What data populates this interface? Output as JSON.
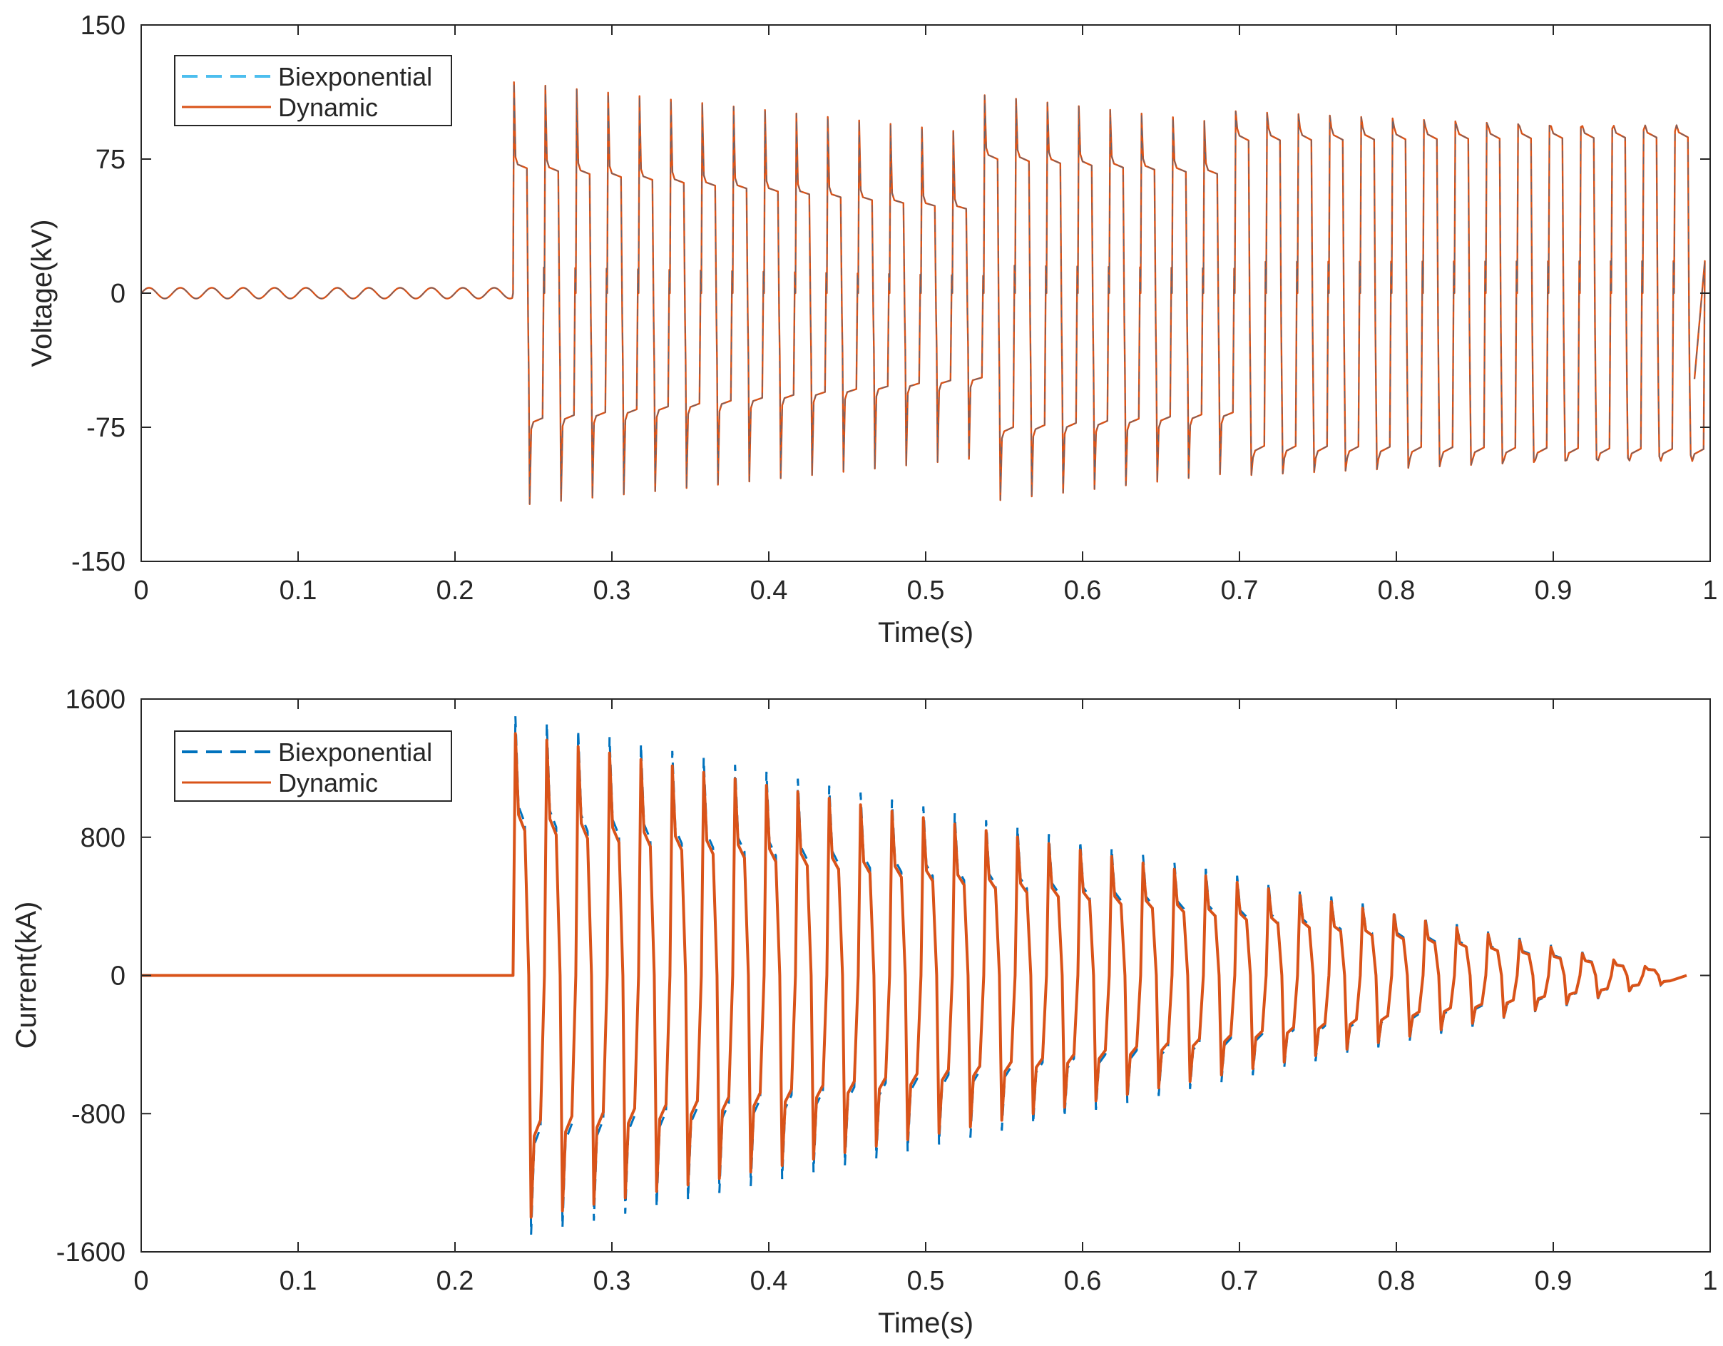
{
  "colors": {
    "dynamic": "#d95319",
    "biexponential": "#0072bd",
    "biexponential_legend_voltage": "#4dbeee",
    "axis": "#262626",
    "background": "#ffffff"
  },
  "chart_data": [
    {
      "type": "line",
      "id": "voltage",
      "title": "",
      "xlabel": "Time(s)",
      "ylabel": "Voltage(kV)",
      "xlim": [
        0,
        1
      ],
      "ylim": [
        -150,
        150
      ],
      "xticks": [
        0,
        0.1,
        0.2,
        0.3,
        0.4,
        0.5,
        0.6,
        0.7,
        0.8,
        0.9,
        1
      ],
      "xtick_labels": [
        "0",
        "0.1",
        "0.2",
        "0.3",
        "0.4",
        "0.5",
        "0.6",
        "0.7",
        "0.8",
        "0.9",
        "1"
      ],
      "yticks": [
        150,
        75,
        0,
        -75,
        -150
      ],
      "ytick_labels": [
        "150",
        "75",
        "0",
        "-75",
        "-150"
      ],
      "legend": {
        "position": "top-left",
        "entries": [
          "Biexponential",
          "Dynamic"
        ]
      },
      "series": [
        {
          "name": "Biexponential",
          "style": "dashed",
          "description": "Overlaps Dynamic almost exactly",
          "pre_fault": {
            "x_range": [
              0,
              0.237
            ],
            "amplitude": 3
          },
          "fault_start": 0.237,
          "period": 0.02,
          "segments": [
            {
              "x_range": [
                0.237,
                0.525
              ],
              "peak_spike": [
                118,
                90
              ],
              "plateau": [
                72,
                48
              ],
              "trough_spike": [
                -118,
                -92
              ]
            },
            {
              "x_range": [
                0.525,
                0.69
              ],
              "peak_spike": [
                112,
                95
              ],
              "plateau": [
                78,
                68
              ],
              "trough_spike": [
                -117,
                -100
              ]
            },
            {
              "x_range": [
                0.69,
                0.99
              ],
              "peak_spike": [
                102,
                90
              ],
              "plateau": [
                88,
                90
              ],
              "trough_spike": [
                -102,
                -90
              ]
            }
          ]
        },
        {
          "name": "Dynamic",
          "style": "solid",
          "pre_fault": {
            "x_range": [
              0,
              0.237
            ],
            "amplitude": 3
          },
          "fault_start": 0.237,
          "period": 0.02,
          "segments": [
            {
              "x_range": [
                0.237,
                0.525
              ],
              "peak_spike": [
                118,
                90
              ],
              "plateau": [
                72,
                48
              ],
              "trough_spike": [
                -118,
                -92
              ]
            },
            {
              "x_range": [
                0.525,
                0.69
              ],
              "peak_spike": [
                112,
                95
              ],
              "plateau": [
                78,
                68
              ],
              "trough_spike": [
                -117,
                -100
              ]
            },
            {
              "x_range": [
                0.69,
                0.99
              ],
              "peak_spike": [
                102,
                90
              ],
              "plateau": [
                88,
                90
              ],
              "trough_spike": [
                -102,
                -90
              ]
            }
          ]
        }
      ]
    },
    {
      "type": "line",
      "id": "current",
      "title": "",
      "xlabel": "Time(s)",
      "ylabel": "Current(kA)",
      "xlim": [
        0,
        1
      ],
      "ylim": [
        -1600,
        1600
      ],
      "xticks": [
        0,
        0.1,
        0.2,
        0.3,
        0.4,
        0.5,
        0.6,
        0.7,
        0.8,
        0.9,
        1
      ],
      "xtick_labels": [
        "0",
        "0.1",
        "0.2",
        "0.3",
        "0.4",
        "0.5",
        "0.6",
        "0.7",
        "0.8",
        "0.9",
        "1"
      ],
      "yticks": [
        1600,
        800,
        0,
        -800,
        -1600
      ],
      "ytick_labels": [
        "1600",
        "800",
        "0",
        "-800",
        "-1600"
      ],
      "legend": {
        "position": "top-left",
        "entries": [
          "Biexponential",
          "Dynamic"
        ]
      },
      "series": [
        {
          "name": "Biexponential",
          "style": "dashed",
          "fault_start": 0.237,
          "end": 0.985,
          "period": 0.02,
          "envelope_peak": [
            1500,
            0
          ],
          "envelope_shoulder": [
            980,
            0
          ]
        },
        {
          "name": "Dynamic",
          "style": "solid",
          "fault_start": 0.237,
          "end": 0.985,
          "period": 0.02,
          "envelope_peak": [
            1400,
            0
          ],
          "envelope_shoulder": [
            930,
            0
          ]
        }
      ]
    }
  ]
}
